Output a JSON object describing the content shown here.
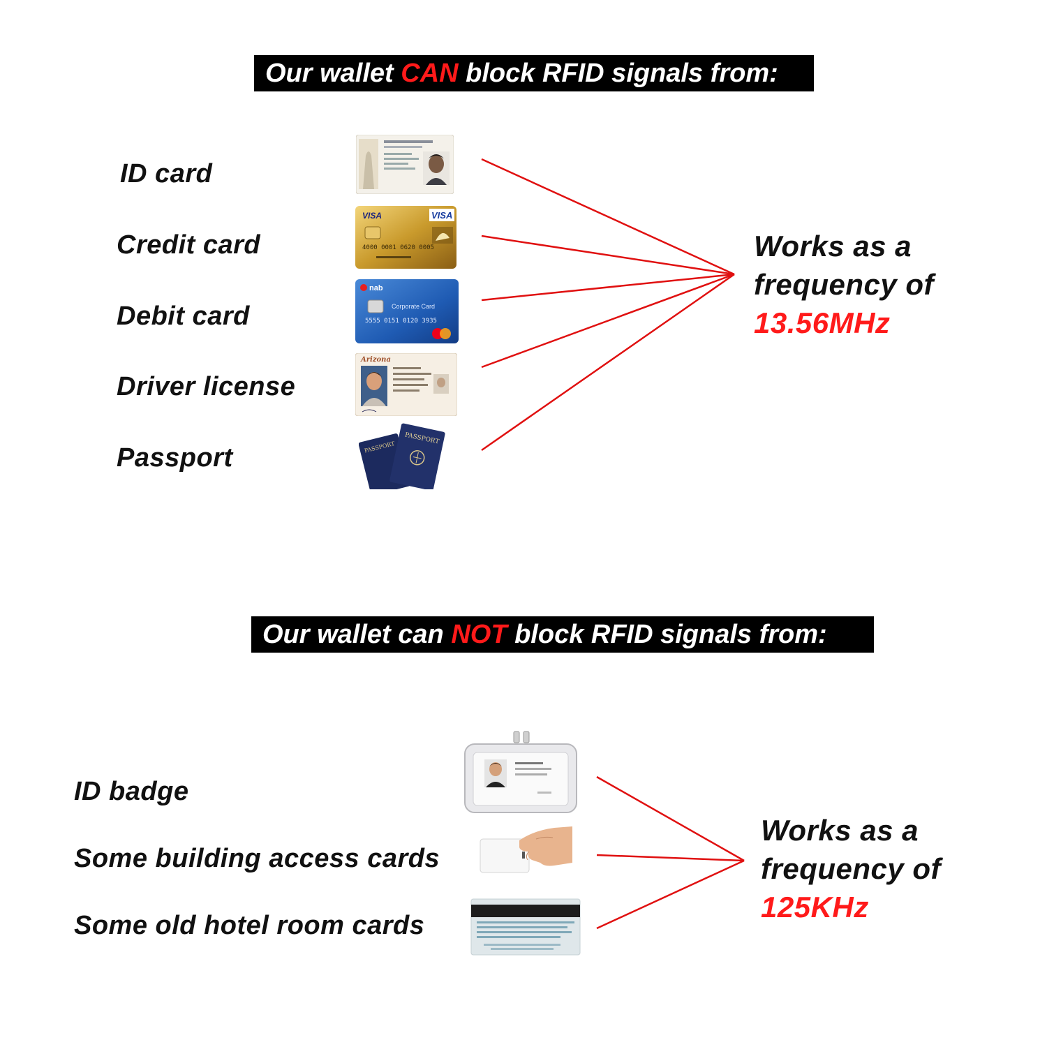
{
  "can_section": {
    "banner": {
      "pre": "Our wallet ",
      "highlight": "CAN",
      "post": " block RFID signals from:"
    },
    "items": [
      {
        "label": "ID card",
        "thumb": "id-card-image"
      },
      {
        "label": "Credit card",
        "thumb": "credit-card-image",
        "brand": "VISA",
        "number": "4000 0001 0620 0005"
      },
      {
        "label": "Debit card",
        "thumb": "debit-card-image",
        "brand": "nab",
        "title": "Corporate Card",
        "number": "5555 0151 0120 3935"
      },
      {
        "label": "Driver license",
        "thumb": "driver-license-image",
        "state": "Arizona"
      },
      {
        "label": "Passport",
        "thumb": "passport-image",
        "word": "PASSPORT"
      }
    ],
    "frequency": {
      "line1": "Works as a",
      "line2": "frequency of",
      "value": "13.56MHz"
    }
  },
  "cannot_section": {
    "banner": {
      "pre": "Our wallet can ",
      "highlight": "NOT",
      "post": " block RFID signals from:"
    },
    "items": [
      {
        "label": "ID badge",
        "thumb": "id-badge-image"
      },
      {
        "label": "Some building access cards",
        "thumb": "access-card-image"
      },
      {
        "label": "Some old hotel room cards",
        "thumb": "hotel-card-image"
      }
    ],
    "frequency": {
      "line1": "Works as a",
      "line2": "frequency of",
      "value": "125KHz"
    }
  },
  "colors": {
    "accent": "#ff1a1a",
    "line": "#e01010",
    "banner_bg": "#000000",
    "text": "#111111"
  }
}
